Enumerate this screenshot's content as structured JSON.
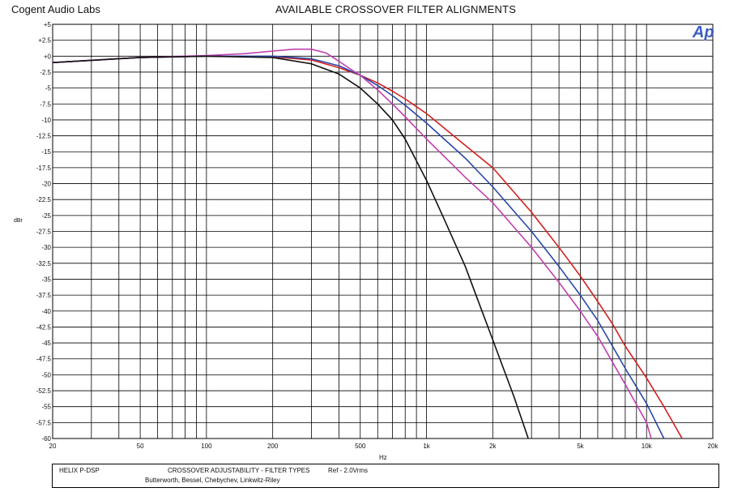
{
  "header": {
    "brand": "Cogent Audio Labs",
    "title": "AVAILABLE CROSSOVER FILTER ALIGNMENTS"
  },
  "logo": {
    "text": "Ap",
    "color": "#3a5ec0"
  },
  "axes": {
    "ylabel": "dBr",
    "xunit": "Hz"
  },
  "footer": {
    "device": "HELIX P-DSP",
    "description": "CROSSOVER ADJUSTABILITY - FILTER TYPES",
    "reference": "Ref - 2.0Vrms",
    "types_list": "Butterworth,   Bessel,   Chebychev,   Linkwitz-Riley"
  },
  "chart_data": {
    "type": "line",
    "title": "AVAILABLE CROSSOVER FILTER ALIGNMENTS",
    "xlabel": "Hz",
    "ylabel": "dBr",
    "xscale": "log",
    "xlim": [
      20,
      20000
    ],
    "ylim": [
      -60,
      5
    ],
    "grid": true,
    "xticks": [
      20,
      50,
      100,
      200,
      500,
      1000,
      2000,
      5000,
      10000,
      20000
    ],
    "xtick_labels": [
      "20",
      "50",
      "100",
      "200",
      "500",
      "1k",
      "2k",
      "5k",
      "10k",
      "20k"
    ],
    "yticks": [
      5,
      2.5,
      0,
      -2.5,
      -5,
      -7.5,
      -10,
      -12.5,
      -15,
      -17.5,
      -20,
      -22.5,
      -25,
      -27.5,
      -30,
      -32.5,
      -35,
      -37.5,
      -40,
      -42.5,
      -45,
      -47.5,
      -50,
      -52.5,
      -55,
      -57.5,
      -60
    ],
    "ytick_labels": [
      "+5",
      "+2.5",
      "+0",
      "-2.5",
      "-5",
      "-7.5",
      "-10",
      "-12.5",
      "-15",
      "-17.5",
      "-20",
      "-22.5",
      "-25",
      "-27.5",
      "-30",
      "-32.5",
      "-35",
      "-37.5",
      "-40",
      "-42.5",
      "-45",
      "-47.5",
      "-50",
      "-52.5",
      "-55",
      "-57.5",
      "-60"
    ],
    "series": [
      {
        "color": "#d42020",
        "x": [
          20,
          50,
          100,
          200,
          300,
          400,
          500,
          600,
          700,
          800,
          1000,
          1500,
          2000,
          3000,
          4000,
          5000,
          6000,
          7000,
          8000,
          10000,
          12000,
          14500
        ],
        "y": [
          -1,
          -0.2,
          0,
          -0.1,
          -0.6,
          -1.8,
          -3.0,
          -4.2,
          -5.5,
          -6.7,
          -9.0,
          -14.0,
          -17.5,
          -24.5,
          -30.0,
          -34.5,
          -38.5,
          -42.0,
          -45.5,
          -50.5,
          -55.0,
          -60
        ]
      },
      {
        "color": "#2a48a8",
        "x": [
          20,
          50,
          100,
          200,
          300,
          400,
          500,
          600,
          700,
          800,
          1000,
          1500,
          2000,
          3000,
          4000,
          5000,
          6000,
          7000,
          8000,
          10000,
          12000
        ],
        "y": [
          -1,
          -0.2,
          0,
          0,
          -0.4,
          -1.5,
          -3.0,
          -4.6,
          -6.2,
          -7.7,
          -10.5,
          -16.0,
          -20.5,
          -27.5,
          -33.0,
          -37.5,
          -41.5,
          -45.5,
          -49.0,
          -54.5,
          -60
        ]
      },
      {
        "color": "#c040b0",
        "x": [
          20,
          50,
          100,
          150,
          200,
          250,
          300,
          350,
          400,
          450,
          500,
          600,
          700,
          800,
          1000,
          1500,
          2000,
          3000,
          4000,
          5000,
          6000,
          7000,
          8000,
          10000,
          10500
        ],
        "y": [
          -1,
          -0.2,
          0.1,
          0.4,
          0.8,
          1.1,
          1.1,
          0.5,
          -0.8,
          -2.0,
          -3.0,
          -5.3,
          -7.5,
          -9.5,
          -13.0,
          -19.0,
          -23.0,
          -30.0,
          -35.5,
          -40.0,
          -44.0,
          -48.0,
          -51.5,
          -57.5,
          -60
        ]
      },
      {
        "color": "#111111",
        "x": [
          20,
          50,
          100,
          200,
          300,
          400,
          500,
          600,
          700,
          800,
          1000,
          1200,
          1500,
          2000,
          2500,
          2900
        ],
        "y": [
          -1,
          -0.2,
          0,
          -0.2,
          -1.2,
          -2.8,
          -5.0,
          -7.5,
          -10.0,
          -13.0,
          -19.5,
          -25.5,
          -33.0,
          -44.5,
          -53.5,
          -60
        ]
      }
    ]
  }
}
